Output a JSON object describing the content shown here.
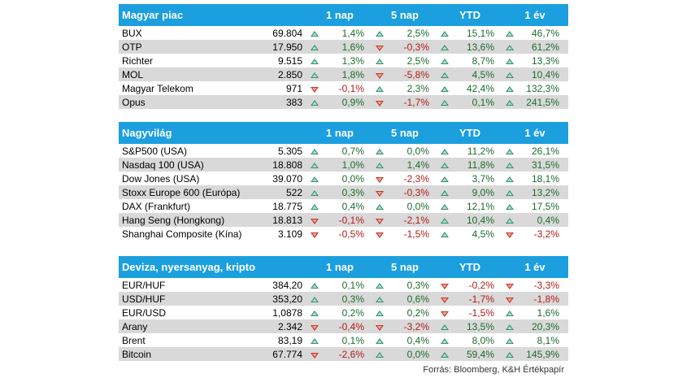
{
  "headers": [
    "1 nap",
    "5 nap",
    "YTD",
    "1 év"
  ],
  "source": "Forrás: Bloomberg, K&H Értékpapír",
  "colors": {
    "header_bg": "#1b9fdf",
    "positive": "#1e6b2f",
    "negative": "#b31b1b",
    "stripe": "#d9d9d9"
  },
  "sections": [
    {
      "title": "Magyar piac",
      "rows": [
        {
          "name": "BUX",
          "value": "69.804",
          "changes": [
            "1,4%",
            "2,5%",
            "15,1%",
            "46,7%"
          ]
        },
        {
          "name": "OTP",
          "value": "17.950",
          "changes": [
            "1,6%",
            "-0,3%",
            "13,6%",
            "61,2%"
          ]
        },
        {
          "name": "Richter",
          "value": "9.515",
          "changes": [
            "1,3%",
            "2,5%",
            "8,7%",
            "13,3%"
          ]
        },
        {
          "name": "MOL",
          "value": "2.850",
          "changes": [
            "1,8%",
            "-5,8%",
            "4,5%",
            "10,4%"
          ]
        },
        {
          "name": "Magyar Telekom",
          "value": "971",
          "changes": [
            "-0,1%",
            "2,3%",
            "42,4%",
            "132,3%"
          ]
        },
        {
          "name": "Opus",
          "value": "383",
          "changes": [
            "0,9%",
            "-1,7%",
            "0,1%",
            "241,5%"
          ]
        }
      ]
    },
    {
      "title": "Nagyvilág",
      "rows": [
        {
          "name": "S&P500 (USA)",
          "value": "5.305",
          "changes": [
            "0,7%",
            "0,0%",
            "11,2%",
            "26,1%"
          ]
        },
        {
          "name": "Nasdaq 100 (USA)",
          "value": "18.808",
          "changes": [
            "1,0%",
            "1,4%",
            "11,8%",
            "31,5%"
          ]
        },
        {
          "name": "Dow Jones (USA)",
          "value": "39.070",
          "changes": [
            "0,0%",
            "-2,3%",
            "3,7%",
            "18,1%"
          ]
        },
        {
          "name": "Stoxx Europe 600 (Európa)",
          "value": "522",
          "changes": [
            "0,3%",
            "-0,3%",
            "9,0%",
            "13,2%"
          ]
        },
        {
          "name": "DAX (Frankfurt)",
          "value": "18.775",
          "changes": [
            "0,4%",
            "0,0%",
            "12,1%",
            "17,5%"
          ]
        },
        {
          "name": "Hang Seng (Hongkong)",
          "value": "18.813",
          "changes": [
            "-0,1%",
            "-2,1%",
            "10,4%",
            "0,4%"
          ]
        },
        {
          "name": "Shanghai Composite (Kína)",
          "value": "3.109",
          "changes": [
            "-0,5%",
            "-1,5%",
            "4,5%",
            "-3,2%"
          ]
        }
      ]
    },
    {
      "title": "Deviza, nyersanyag, kripto",
      "rows": [
        {
          "name": "EUR/HUF",
          "value": "384,20",
          "changes": [
            "0,1%",
            "0,3%",
            "-0,2%",
            "-3,3%"
          ]
        },
        {
          "name": "USD/HUF",
          "value": "353,20",
          "changes": [
            "0,3%",
            "0,6%",
            "-1,7%",
            "-1,8%"
          ]
        },
        {
          "name": "EUR/USD",
          "value": "1,0878",
          "changes": [
            "0,2%",
            "0,2%",
            "-1,5%",
            "1,6%"
          ]
        },
        {
          "name": "Arany",
          "value": "2.342",
          "changes": [
            "-0,4%",
            "-3,2%",
            "13,5%",
            "20,3%"
          ]
        },
        {
          "name": "Brent",
          "value": "83,19",
          "changes": [
            "0,1%",
            "0,4%",
            "8,0%",
            "8,1%"
          ]
        },
        {
          "name": "Bitcoin",
          "value": "67.774",
          "changes": [
            "-2,6%",
            "0,0%",
            "59,4%",
            "145,9%"
          ]
        }
      ]
    }
  ]
}
